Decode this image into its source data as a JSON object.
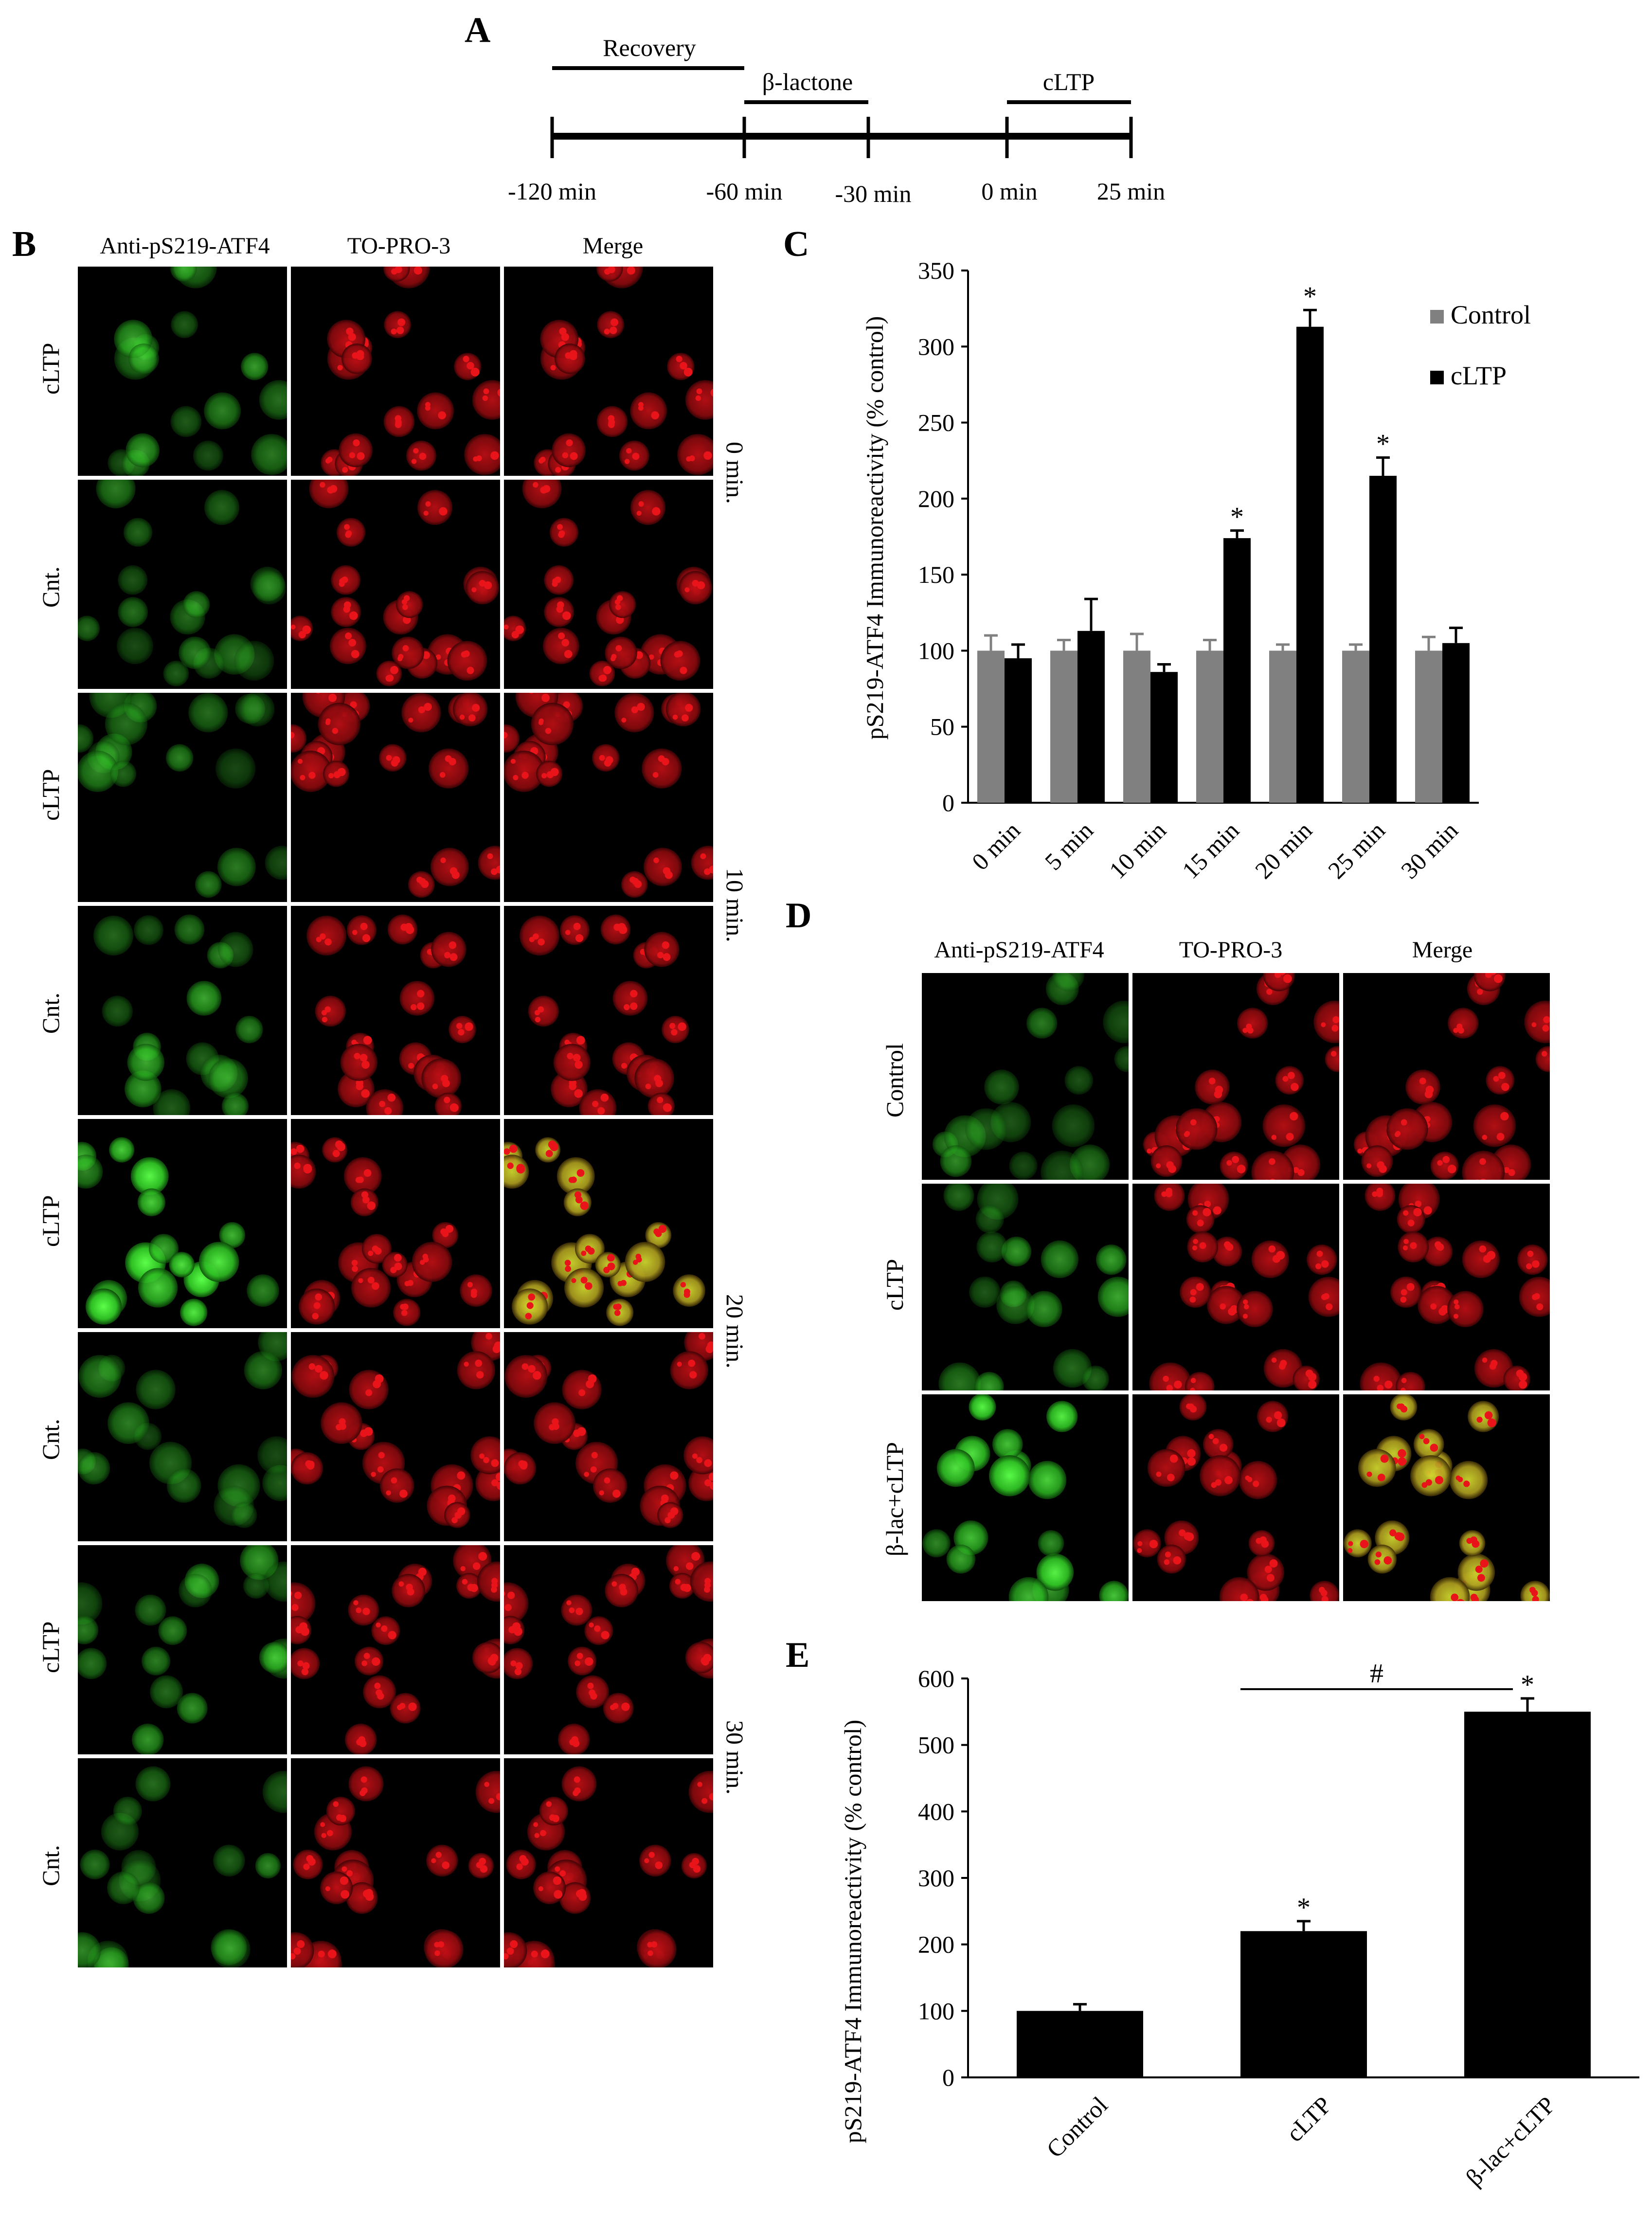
{
  "panels": {
    "A": "A",
    "B": "B",
    "C": "C",
    "D": "D",
    "E": "E"
  },
  "timeline": {
    "phases": [
      "Recovery",
      "β-lactone",
      "cLTP"
    ],
    "ticks": [
      "-120 min",
      "-60 min",
      "-30 min",
      "0 min",
      "25 min"
    ]
  },
  "panel_b": {
    "columns": [
      "Anti-pS219-ATF4",
      "TO-PRO-3",
      "Merge"
    ],
    "rows": [
      "cLTP",
      "Cnt.",
      "cLTP",
      "Cnt.",
      "cLTP",
      "Cnt.",
      "cLTP",
      "Cnt."
    ],
    "timepoints": [
      "0 min.",
      "10 min.",
      "20 min.",
      "30 min."
    ]
  },
  "panel_d": {
    "columns": [
      "Anti-pS219-ATF4",
      "TO-PRO-3",
      "Merge"
    ],
    "rows": [
      "Control",
      "cLTP",
      "β-lac+cLTP"
    ]
  },
  "colors": {
    "control_bar": "#808080",
    "cltp_bar": "#000000",
    "green": "#3fd23a",
    "red": "#e8141a"
  },
  "chart_data": [
    {
      "panel": "C",
      "type": "bar",
      "ylabel": "pS219-ATF4 Immunoreactivity (% control)",
      "ylim": [
        0,
        350
      ],
      "yticks": [
        0,
        50,
        100,
        150,
        200,
        250,
        300,
        350
      ],
      "categories": [
        "0 min",
        "5 min",
        "10 min",
        "15 min",
        "20 min",
        "25 min",
        "30 min"
      ],
      "series": [
        {
          "name": "Control",
          "values": [
            100,
            100,
            100,
            100,
            100,
            100,
            100
          ],
          "errors": [
            10,
            7,
            11,
            7,
            4,
            4,
            9
          ]
        },
        {
          "name": "cLTP",
          "values": [
            95,
            113,
            86,
            174,
            313,
            215,
            105
          ],
          "errors": [
            9,
            21,
            5,
            5,
            11,
            12,
            10
          ]
        }
      ],
      "significance": [
        "",
        "",
        "",
        "*",
        "*",
        "*",
        ""
      ],
      "legend": "top-right"
    },
    {
      "panel": "E",
      "type": "bar",
      "ylabel": "pS219-ATF4 Immunoreactivity (% control)",
      "ylim": [
        0,
        600
      ],
      "yticks": [
        0,
        100,
        200,
        300,
        400,
        500,
        600
      ],
      "categories": [
        "Control",
        "cLTP",
        "β-lac+cLTP"
      ],
      "series": [
        {
          "values": [
            100,
            220,
            550
          ],
          "errors": [
            10,
            15,
            20
          ]
        }
      ],
      "significance": [
        "",
        "*",
        "*"
      ],
      "bracket_label": "#"
    }
  ]
}
